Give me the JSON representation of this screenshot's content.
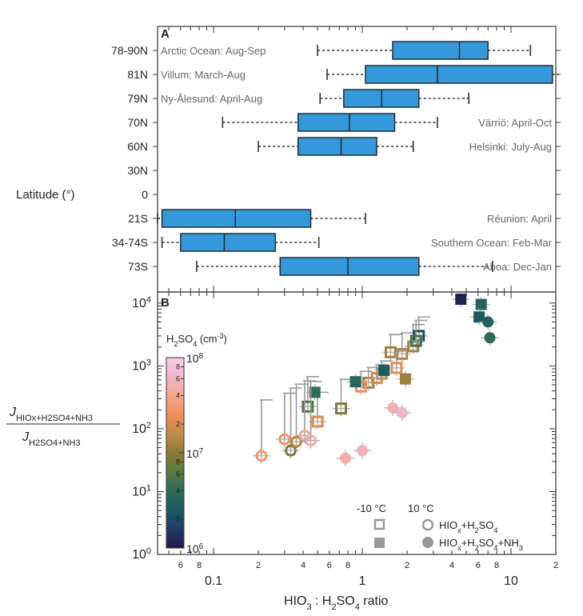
{
  "chart_data": [
    {
      "type": "box",
      "panel_label": "A",
      "ylabel": "Latitude (°)",
      "x_scale": "log",
      "xlim": [
        0.042,
        20
      ],
      "latitudes": [
        "78-90N",
        "81N",
        "79N",
        "70N",
        "60N",
        "30N",
        "0",
        "21S",
        "34-74S",
        "73S"
      ],
      "boxes": [
        {
          "lat": "78-90N",
          "site": "Arctic Ocean: Aug-Sep",
          "label_side": "left",
          "whisker_low": 0.5,
          "q1": 1.6,
          "median": 4.5,
          "q3": 7.0,
          "whisker_high": 13.5
        },
        {
          "lat": "81N",
          "site": "Villum: March-Aug",
          "label_side": "left",
          "whisker_low": 0.58,
          "q1": 1.05,
          "median": 3.2,
          "q3": 19.0,
          "whisker_high": 21.0
        },
        {
          "lat": "79N",
          "site": "Ny-Ålesund: April-Aug",
          "label_side": "left",
          "whisker_low": 0.52,
          "q1": 0.75,
          "median": 1.35,
          "q3": 2.4,
          "whisker_high": 5.2
        },
        {
          "lat": "70N",
          "site": "Värriö: April-Oct",
          "label_side": "right",
          "whisker_low": 0.115,
          "q1": 0.37,
          "median": 0.82,
          "q3": 1.65,
          "whisker_high": 3.2
        },
        {
          "lat": "60N",
          "site": "Helsinki: July-Aug",
          "label_side": "right",
          "whisker_low": 0.2,
          "q1": 0.37,
          "median": 0.72,
          "q3": 1.25,
          "whisker_high": 2.2
        },
        {
          "lat": "21S",
          "site": "Réunion: April",
          "label_side": "right",
          "whisker_low": 0.042,
          "q1": 0.045,
          "median": 0.14,
          "q3": 0.45,
          "whisker_high": 1.05
        },
        {
          "lat": "34-74S",
          "site": "Southern Ocean: Feb-Mar",
          "label_side": "right",
          "whisker_low": 0.045,
          "q1": 0.06,
          "median": 0.118,
          "q3": 0.26,
          "whisker_high": 0.51
        },
        {
          "lat": "73S",
          "site": "Aboa: Dec-Jan",
          "label_side": "right",
          "whisker_low": 0.077,
          "q1": 0.28,
          "median": 0.8,
          "q3": 2.4,
          "whisker_high": 7.5
        }
      ]
    },
    {
      "type": "scatter",
      "panel_label": "B",
      "xlabel_parts": [
        "HIO",
        "3",
        " : H",
        "2",
        "SO",
        "4",
        " ratio"
      ],
      "ylabel_num_parts": [
        "J",
        "HIO",
        "x",
        "+H",
        "2",
        "SO",
        "4",
        "+NH",
        "3"
      ],
      "ylabel_den_parts": [
        "J",
        "H",
        "2",
        "SO",
        "4",
        "+NH",
        "3"
      ],
      "x_scale": "log",
      "y_scale": "log",
      "xlim": [
        0.042,
        20
      ],
      "ylim": [
        1,
        15000
      ],
      "x_ticks_major": [
        "0.1",
        "1",
        "10"
      ],
      "x_ticks_minor_labels": [
        "6",
        "8",
        "2",
        "4",
        "6",
        "8",
        "2",
        "4",
        "6",
        "8",
        "2",
        "4",
        "6",
        "8",
        "2"
      ],
      "y_ticks": [
        "10^0",
        "10^1",
        "10^2",
        "10^3",
        "10^4"
      ],
      "colorbar": {
        "title_parts": [
          "H",
          "2",
          "SO",
          "4",
          " (cm",
          "-3",
          ")"
        ],
        "range": [
          1000000,
          100000000
        ],
        "scale": "log",
        "tick_labels": [
          "10^6",
          "2",
          "4",
          "6",
          "8",
          "10^7",
          "2",
          "4",
          "6",
          "8",
          "10^8"
        ],
        "colors": [
          "#221c4a",
          "#1f3a63",
          "#1c5a62",
          "#2d6b55",
          "#5a7a40",
          "#8a7b38",
          "#c08b4a",
          "#f28e5c",
          "#f6a58a",
          "#f0b6cc",
          "#f7cde3"
        ]
      },
      "legend": {
        "col1_header": "-10 °C",
        "col2_header": "10 °C",
        "row1_label_parts": [
          "HIO",
          "x",
          "+H",
          "2",
          "SO",
          "4"
        ],
        "row2_label_parts": [
          "HIO",
          "x",
          "+H",
          "2",
          "SO",
          "4",
          "+NH",
          "3"
        ],
        "location": "lower-right"
      },
      "series": [
        {
          "name": "HIOx+H2SO4 (-10 °C)",
          "marker": "open-square",
          "points": [
            {
              "x": 0.43,
              "y": 225,
              "h2so4": 6000000,
              "err_up": 450
            },
            {
              "x": 0.72,
              "y": 210,
              "h2so4": 9000000,
              "err_up": 400
            },
            {
              "x": 1.1,
              "y": 540,
              "h2so4": 12000000,
              "err_up": 400
            },
            {
              "x": 1.35,
              "y": 750,
              "h2so4": 15000000,
              "err_up": 450
            },
            {
              "x": 1.55,
              "y": 1650,
              "h2so4": 12000000,
              "err_up": 1500
            },
            {
              "x": 1.85,
              "y": 1550,
              "h2so4": 14000000,
              "err_up": 1800
            },
            {
              "x": 2.2,
              "y": 2050,
              "h2so4": 12000000,
              "err_up": 2500
            },
            {
              "x": 2.4,
              "y": 3000,
              "h2so4": 2000000,
              "err_up": 3000
            },
            {
              "x": 2.3,
              "y": 2500,
              "h2so4": 5000000,
              "err_up": 2800
            },
            {
              "x": 0.5,
              "y": 130,
              "h2so4": 20000000,
              "err_up": 250
            },
            {
              "x": 0.98,
              "y": 470,
              "h2so4": 25000000,
              "err_up": 350
            },
            {
              "x": 1.25,
              "y": 640,
              "h2so4": 18000000,
              "err_up": 400
            },
            {
              "x": 1.7,
              "y": 930,
              "h2so4": 22000000,
              "err_up": 800
            }
          ]
        },
        {
          "name": "HIOx+H2SO4+NH3 (-10 °C)",
          "marker": "filled-square",
          "points": [
            {
              "x": 0.48,
              "y": 380,
              "h2so4": 4000000
            },
            {
              "x": 0.9,
              "y": 560,
              "h2so4": 3500000
            },
            {
              "x": 1.4,
              "y": 850,
              "h2so4": 2500000
            },
            {
              "x": 1.95,
              "y": 620,
              "h2so4": 12000000
            },
            {
              "x": 4.6,
              "y": 11500,
              "h2so4": 1100000
            },
            {
              "x": 6.3,
              "y": 9500,
              "h2so4": 3000000
            },
            {
              "x": 6.1,
              "y": 6000,
              "h2so4": 2600000
            }
          ]
        },
        {
          "name": "HIOx+H2SO4 (10 °C)",
          "marker": "open-circle",
          "points": [
            {
              "x": 0.21,
              "y": 37,
              "h2so4": 30000000,
              "err_up": 250
            },
            {
              "x": 0.3,
              "y": 68,
              "h2so4": 28000000,
              "err_up": 300
            },
            {
              "x": 0.33,
              "y": 45,
              "h2so4": 9000000,
              "err_up": 400
            },
            {
              "x": 0.36,
              "y": 62,
              "h2so4": 15000000,
              "err_up": 450
            },
            {
              "x": 0.41,
              "y": 78,
              "h2so4": 40000000,
              "err_up": 500
            },
            {
              "x": 0.45,
              "y": 65,
              "h2so4": 50000000,
              "err_up": 500
            }
          ]
        },
        {
          "name": "HIOx+H2SO4+NH3 (10 °C)",
          "marker": "filled-circle",
          "points": [
            {
              "x": 0.77,
              "y": 34,
              "h2so4": 50000000
            },
            {
              "x": 1.0,
              "y": 45,
              "h2so4": 55000000
            },
            {
              "x": 1.6,
              "y": 215,
              "h2so4": 55000000
            },
            {
              "x": 1.85,
              "y": 180,
              "h2so4": 60000000
            },
            {
              "x": 7.0,
              "y": 5000,
              "h2so4": 3000000
            },
            {
              "x": 7.2,
              "y": 2800,
              "h2so4": 4000000
            }
          ]
        }
      ]
    }
  ]
}
